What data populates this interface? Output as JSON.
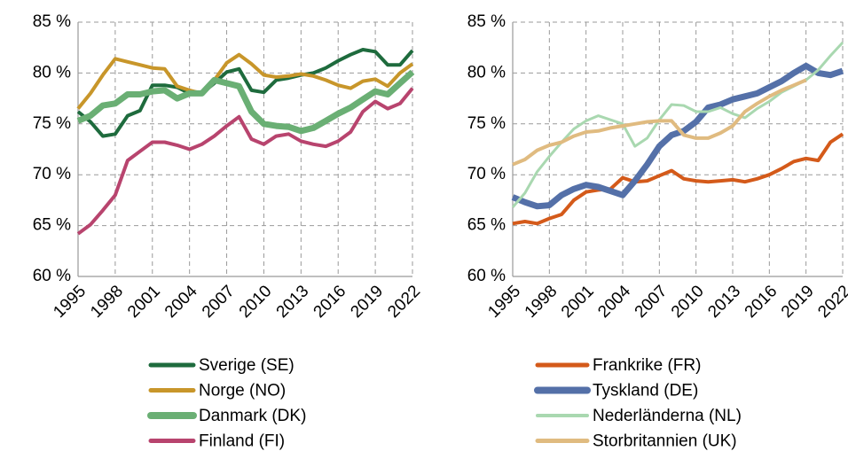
{
  "chart_data": [
    {
      "type": "line",
      "x": [
        1995,
        1996,
        1997,
        1998,
        1999,
        2000,
        2001,
        2002,
        2003,
        2004,
        2005,
        2006,
        2007,
        2008,
        2009,
        2010,
        2011,
        2012,
        2013,
        2014,
        2015,
        2016,
        2017,
        2018,
        2019,
        2020,
        2021,
        2022
      ],
      "xlim": [
        1995,
        2022
      ],
      "xticks": [
        1995,
        1998,
        2001,
        2004,
        2007,
        2010,
        2013,
        2016,
        2019,
        2022
      ],
      "ylim": [
        60,
        85
      ],
      "yticks": [
        {
          "value": 60,
          "label": "60 %"
        },
        {
          "value": 65,
          "label": "65 %"
        },
        {
          "value": 70,
          "label": "70 %"
        },
        {
          "value": 75,
          "label": "75 %"
        },
        {
          "value": 80,
          "label": "80 %"
        },
        {
          "value": 85,
          "label": "85 %"
        }
      ],
      "grid": true,
      "legend": "bottom",
      "series": [
        {
          "name": "Sverige (SE)",
          "color": "#1e6b3d",
          "values": [
            76.2,
            75.2,
            73.8,
            74.0,
            75.8,
            76.3,
            78.8,
            78.8,
            78.6,
            78.0,
            78.0,
            79.0,
            80.1,
            80.4,
            78.3,
            78.1,
            79.3,
            79.5,
            79.8,
            80.0,
            80.5,
            81.2,
            81.8,
            82.3,
            82.1,
            80.8,
            80.8,
            82.2
          ]
        },
        {
          "name": "Norge (NO)",
          "color": "#c8962a",
          "values": [
            76.5,
            78.0,
            79.8,
            81.4,
            81.1,
            80.8,
            80.5,
            80.4,
            78.7,
            78.3,
            78.0,
            79.3,
            81.0,
            81.8,
            80.9,
            79.8,
            79.6,
            79.7,
            79.9,
            79.7,
            79.3,
            78.8,
            78.5,
            79.2,
            79.4,
            78.7,
            80.0,
            80.9
          ]
        },
        {
          "name": "Danmark (DK)",
          "color": "#6aaf74",
          "values": [
            75.3,
            75.8,
            76.8,
            77.0,
            77.9,
            77.9,
            78.2,
            78.3,
            77.5,
            78.0,
            78.0,
            79.3,
            79.0,
            78.7,
            76.2,
            75.0,
            74.8,
            74.7,
            74.3,
            74.6,
            75.3,
            76.0,
            76.6,
            77.4,
            78.2,
            77.9,
            79.0,
            80.1
          ]
        },
        {
          "name": "Finland (FI)",
          "color": "#b8446e",
          "values": [
            64.2,
            65.1,
            66.5,
            68.0,
            71.4,
            72.3,
            73.2,
            73.2,
            72.9,
            72.5,
            73.0,
            73.8,
            74.8,
            75.7,
            73.5,
            73.0,
            73.8,
            74.0,
            73.3,
            73.0,
            72.8,
            73.3,
            74.2,
            76.2,
            77.2,
            76.5,
            77.0,
            78.5
          ]
        }
      ]
    },
    {
      "type": "line",
      "x": [
        1995,
        1996,
        1997,
        1998,
        1999,
        2000,
        2001,
        2002,
        2003,
        2004,
        2005,
        2006,
        2007,
        2008,
        2009,
        2010,
        2011,
        2012,
        2013,
        2014,
        2015,
        2016,
        2017,
        2018,
        2019,
        2020,
        2021,
        2022
      ],
      "xlim": [
        1995,
        2022
      ],
      "xticks": [
        1995,
        1998,
        2001,
        2004,
        2007,
        2010,
        2013,
        2016,
        2019,
        2022
      ],
      "ylim": [
        60,
        85
      ],
      "yticks": [
        {
          "value": 60,
          "label": "60 %"
        },
        {
          "value": 65,
          "label": "65 %"
        },
        {
          "value": 70,
          "label": "70 %"
        },
        {
          "value": 75,
          "label": "75 %"
        },
        {
          "value": 80,
          "label": "80 %"
        },
        {
          "value": 85,
          "label": "85 %"
        }
      ],
      "grid": true,
      "legend": "bottom",
      "series": [
        {
          "name": "Frankrike (FR)",
          "color": "#d45a1a",
          "values": [
            65.2,
            65.4,
            65.2,
            65.7,
            66.1,
            67.5,
            68.3,
            68.5,
            68.6,
            69.7,
            69.3,
            69.4,
            69.9,
            70.4,
            69.6,
            69.4,
            69.3,
            69.4,
            69.5,
            69.3,
            69.6,
            70.0,
            70.6,
            71.3,
            71.6,
            71.4,
            73.2,
            74.0
          ]
        },
        {
          "name": "Tyskland (DE)",
          "color": "#5470a8",
          "values": [
            67.8,
            67.3,
            66.9,
            67.0,
            68.0,
            68.6,
            69.0,
            68.8,
            68.4,
            68.0,
            69.4,
            71.0,
            72.8,
            73.9,
            74.3,
            75.2,
            76.6,
            76.9,
            77.4,
            77.7,
            78.0,
            78.6,
            79.2,
            80.0,
            80.7,
            80.0,
            79.8,
            80.2
          ]
        },
        {
          "name": "Nederländerna (NL)",
          "color": "#a9d8b0",
          "values": [
            66.8,
            68.2,
            70.3,
            71.8,
            73.2,
            74.5,
            75.3,
            75.8,
            75.4,
            75.0,
            72.8,
            73.6,
            75.4,
            76.9,
            76.8,
            76.2,
            76.2,
            76.6,
            76.0,
            75.6,
            76.5,
            77.2,
            78.1,
            78.7,
            79.3,
            80.3,
            81.7,
            83.0
          ]
        },
        {
          "name": "Storbritannien (UK)",
          "color": "#e0bb80",
          "values": [
            71.0,
            71.5,
            72.4,
            72.9,
            73.2,
            73.8,
            74.2,
            74.3,
            74.6,
            74.8,
            75.0,
            75.2,
            75.3,
            75.3,
            73.9,
            73.6,
            73.6,
            74.1,
            74.8,
            76.2,
            77.0,
            77.7,
            78.3,
            78.8,
            79.3,
            null,
            null,
            null
          ]
        }
      ]
    }
  ]
}
